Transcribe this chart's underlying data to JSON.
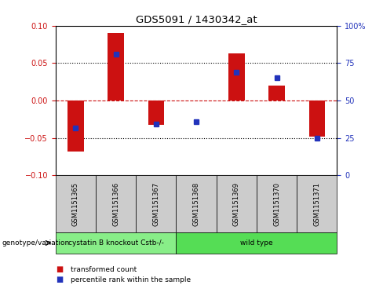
{
  "title": "GDS5091 / 1430342_at",
  "samples": [
    "GSM1151365",
    "GSM1151366",
    "GSM1151367",
    "GSM1151368",
    "GSM1151369",
    "GSM1151370",
    "GSM1151371"
  ],
  "bar_values": [
    -0.068,
    0.09,
    -0.033,
    0.0,
    0.063,
    0.02,
    -0.048
  ],
  "percentile_values": [
    -0.037,
    0.062,
    -0.032,
    -0.028,
    0.038,
    0.03,
    -0.05
  ],
  "ylim": [
    -0.1,
    0.1
  ],
  "yticks_left": [
    -0.1,
    -0.05,
    0.0,
    0.05,
    0.1
  ],
  "yticks_right": [
    0,
    25,
    50,
    75,
    100
  ],
  "bar_color": "#cc1111",
  "dot_color": "#2233bb",
  "zero_line_color": "#cc1111",
  "grid_color": "#000000",
  "sample_box_color": "#cccccc",
  "genotype_groups": [
    {
      "label": "cystatin B knockout Cstb-/-",
      "start": 0,
      "end": 3,
      "color": "#88ee88"
    },
    {
      "label": "wild type",
      "start": 3,
      "end": 7,
      "color": "#55dd55"
    }
  ],
  "legend_bar_label": "transformed count",
  "legend_dot_label": "percentile rank within the sample",
  "genotype_label": "genotype/variation",
  "bar_width": 0.4
}
